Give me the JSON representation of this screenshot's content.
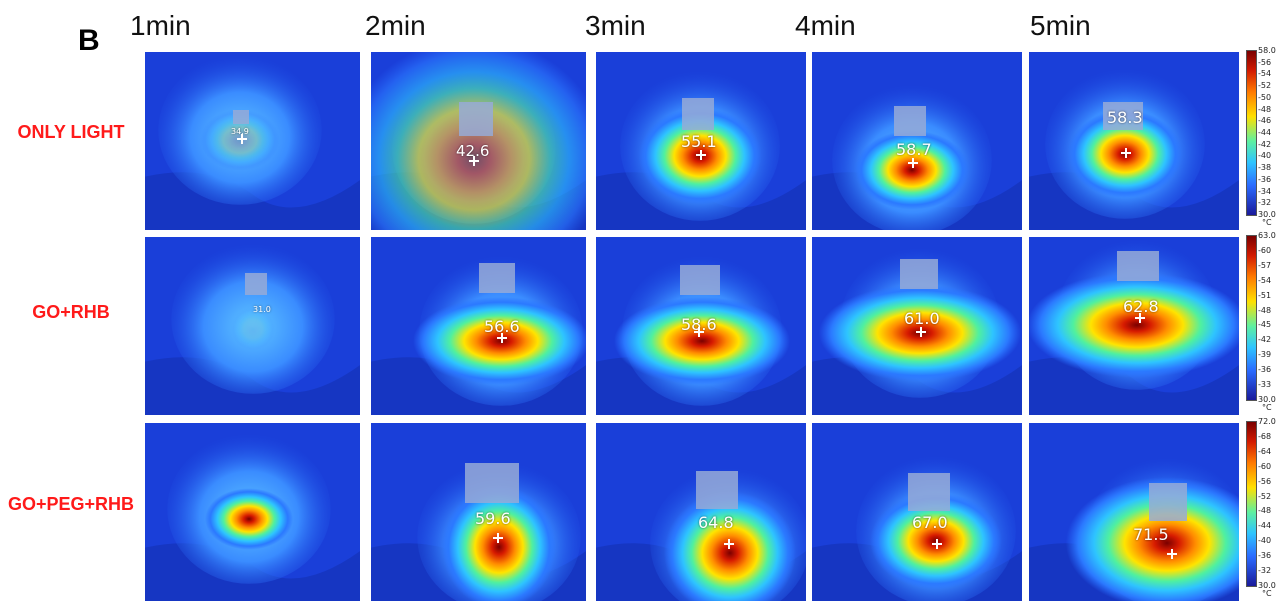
{
  "panel_letter": "B",
  "columns": [
    "1min",
    "2min",
    "3min",
    "4min",
    "5min"
  ],
  "rows": [
    {
      "label": "ONLY LIGHT",
      "readouts": [
        "34.9",
        "42.6",
        "55.1",
        "58.7",
        "58.3"
      ],
      "scale": {
        "max": "58.0",
        "ticks": [
          "56",
          "54",
          "52",
          "50",
          "48",
          "46",
          "44",
          "42",
          "40",
          "38",
          "36",
          "34",
          "32"
        ],
        "min": "30.0",
        "unit": "°C"
      }
    },
    {
      "label": "GO+RHB",
      "readouts": [
        "31.0",
        "56.6",
        "58.6",
        "61.0",
        "62.8"
      ],
      "scale": {
        "max": "63.0",
        "ticks": [
          "60",
          "57",
          "54",
          "51",
          "48",
          "45",
          "42",
          "39",
          "36",
          "33"
        ],
        "min": "30.0",
        "unit": "°C"
      }
    },
    {
      "label": "GO+PEG+RHB",
      "readouts": [
        "",
        "59.6",
        "64.8",
        "67.0",
        "71.5"
      ],
      "scale": {
        "max": "72.0",
        "ticks": [
          "68",
          "64",
          "60",
          "56",
          "52",
          "48",
          "44",
          "40",
          "36",
          "32"
        ],
        "min": "30.0",
        "unit": "°C"
      }
    }
  ],
  "colors": {
    "background_cold": "#1a3fd9",
    "hot_core": "#7a0000",
    "label_red": "#ff1a1a"
  }
}
